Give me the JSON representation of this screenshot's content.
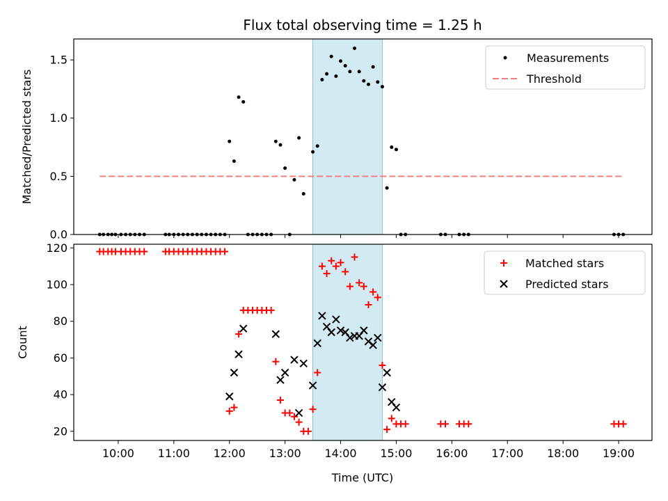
{
  "chart_data": [
    {
      "type": "scatter",
      "title": "Flux total observing time = 1.25 h",
      "xlabel": "",
      "ylabel": "Matched/Predicted stars",
      "xlim": [
        "09:12",
        "19:36"
      ],
      "ylim": [
        0,
        1.68
      ],
      "yticks": [
        "0.0",
        "0.5",
        "1.0",
        "1.5"
      ],
      "grid": false,
      "legend": "top-right",
      "shaded_span": {
        "start": "13:30",
        "end": "14:45",
        "color": "#add8e6"
      },
      "series": [
        {
          "name": "Measurements",
          "marker": "dot",
          "color": "#000000",
          "points": [
            [
              "09:40",
              0
            ],
            [
              "09:44",
              0
            ],
            [
              "09:49",
              0
            ],
            [
              "09:53",
              0
            ],
            [
              "09:57",
              0
            ],
            [
              "10:03",
              0
            ],
            [
              "10:08",
              0
            ],
            [
              "10:13",
              0
            ],
            [
              "10:18",
              0
            ],
            [
              "10:23",
              0
            ],
            [
              "10:28",
              0
            ],
            [
              "10:51",
              0
            ],
            [
              "10:55",
              0
            ],
            [
              "11:00",
              0
            ],
            [
              "11:05",
              0
            ],
            [
              "11:10",
              0
            ],
            [
              "11:15",
              0
            ],
            [
              "11:20",
              0
            ],
            [
              "11:25",
              0
            ],
            [
              "11:30",
              0
            ],
            [
              "11:35",
              0
            ],
            [
              "11:40",
              0
            ],
            [
              "11:45",
              0
            ],
            [
              "11:50",
              0
            ],
            [
              "11:55",
              0
            ],
            [
              "12:00",
              0.8
            ],
            [
              "12:05",
              0.63
            ],
            [
              "12:10",
              1.18
            ],
            [
              "12:15",
              1.14
            ],
            [
              "12:20",
              0
            ],
            [
              "12:25",
              0
            ],
            [
              "12:30",
              0
            ],
            [
              "12:35",
              0
            ],
            [
              "12:40",
              0
            ],
            [
              "12:45",
              0
            ],
            [
              "12:50",
              0.8
            ],
            [
              "12:55",
              0.77
            ],
            [
              "13:00",
              0.57
            ],
            [
              "13:05",
              0
            ],
            [
              "13:10",
              0.47
            ],
            [
              "13:15",
              0.83
            ],
            [
              "13:20",
              0.35
            ],
            [
              "13:30",
              0.71
            ],
            [
              "13:35",
              0.76
            ],
            [
              "13:40",
              1.33
            ],
            [
              "13:45",
              1.38
            ],
            [
              "13:50",
              1.53
            ],
            [
              "13:55",
              1.36
            ],
            [
              "14:00",
              1.49
            ],
            [
              "14:05",
              1.45
            ],
            [
              "14:10",
              1.4
            ],
            [
              "14:15",
              1.6
            ],
            [
              "14:20",
              1.4
            ],
            [
              "14:25",
              1.32
            ],
            [
              "14:30",
              1.29
            ],
            [
              "14:35",
              1.44
            ],
            [
              "14:40",
              1.31
            ],
            [
              "14:45",
              1.27
            ],
            [
              "14:50",
              0.4
            ],
            [
              "14:55",
              0.75
            ],
            [
              "15:00",
              0.73
            ],
            [
              "15:05",
              0
            ],
            [
              "15:10",
              0
            ],
            [
              "15:48",
              0
            ],
            [
              "15:53",
              0
            ],
            [
              "16:08",
              0
            ],
            [
              "16:13",
              0
            ],
            [
              "16:18",
              0
            ],
            [
              "18:55",
              0
            ],
            [
              "19:00",
              0
            ],
            [
              "19:05",
              0
            ]
          ]
        },
        {
          "name": "Threshold",
          "marker": "dashed-line",
          "color": "#f08080",
          "points": [
            [
              "09:40",
              0.5
            ],
            [
              "19:05",
              0.5
            ]
          ]
        }
      ]
    },
    {
      "type": "scatter",
      "title": "",
      "xlabel": "Time (UTC)",
      "ylabel": "Count",
      "xlim": [
        "09:12",
        "19:36"
      ],
      "ylim": [
        15,
        122
      ],
      "xticks": [
        "10:00",
        "11:00",
        "12:00",
        "13:00",
        "14:00",
        "15:00",
        "16:00",
        "17:00",
        "18:00",
        "19:00"
      ],
      "yticks": [
        "20",
        "40",
        "60",
        "80",
        "100",
        "120"
      ],
      "grid": false,
      "legend": "top-right",
      "shaded_span": {
        "start": "13:30",
        "end": "14:45",
        "color": "#add8e6"
      },
      "series": [
        {
          "name": "Matched stars",
          "marker": "plus",
          "color": "#ff0000",
          "points": [
            [
              "09:40",
              118
            ],
            [
              "09:44",
              118
            ],
            [
              "09:49",
              118
            ],
            [
              "09:53",
              118
            ],
            [
              "09:57",
              118
            ],
            [
              "10:03",
              118
            ],
            [
              "10:08",
              118
            ],
            [
              "10:13",
              118
            ],
            [
              "10:18",
              118
            ],
            [
              "10:23",
              118
            ],
            [
              "10:28",
              118
            ],
            [
              "10:51",
              118
            ],
            [
              "10:55",
              118
            ],
            [
              "11:00",
              118
            ],
            [
              "11:05",
              118
            ],
            [
              "11:10",
              118
            ],
            [
              "11:15",
              118
            ],
            [
              "11:20",
              118
            ],
            [
              "11:25",
              118
            ],
            [
              "11:30",
              118
            ],
            [
              "11:35",
              118
            ],
            [
              "11:40",
              118
            ],
            [
              "11:45",
              118
            ],
            [
              "11:50",
              118
            ],
            [
              "11:55",
              118
            ],
            [
              "12:00",
              31
            ],
            [
              "12:05",
              33
            ],
            [
              "12:10",
              73
            ],
            [
              "12:15",
              86
            ],
            [
              "12:20",
              86
            ],
            [
              "12:25",
              86
            ],
            [
              "12:30",
              86
            ],
            [
              "12:35",
              86
            ],
            [
              "12:40",
              86
            ],
            [
              "12:45",
              86
            ],
            [
              "12:50",
              58
            ],
            [
              "12:55",
              37
            ],
            [
              "13:00",
              30
            ],
            [
              "13:05",
              30
            ],
            [
              "13:10",
              28
            ],
            [
              "13:15",
              25
            ],
            [
              "13:20",
              20
            ],
            [
              "13:25",
              20
            ],
            [
              "13:30",
              32
            ],
            [
              "13:35",
              52
            ],
            [
              "13:40",
              110
            ],
            [
              "13:45",
              106
            ],
            [
              "13:50",
              113
            ],
            [
              "13:55",
              110
            ],
            [
              "14:00",
              112
            ],
            [
              "14:05",
              107
            ],
            [
              "14:10",
              99
            ],
            [
              "14:15",
              115
            ],
            [
              "14:20",
              101
            ],
            [
              "14:25",
              99
            ],
            [
              "14:30",
              89
            ],
            [
              "14:35",
              96
            ],
            [
              "14:40",
              93
            ],
            [
              "14:45",
              56
            ],
            [
              "14:50",
              21
            ],
            [
              "14:55",
              27
            ],
            [
              "15:00",
              24
            ],
            [
              "15:05",
              24
            ],
            [
              "15:10",
              24
            ],
            [
              "15:48",
              24
            ],
            [
              "15:53",
              24
            ],
            [
              "16:08",
              24
            ],
            [
              "16:13",
              24
            ],
            [
              "16:18",
              24
            ],
            [
              "18:55",
              24
            ],
            [
              "19:00",
              24
            ],
            [
              "19:05",
              24
            ]
          ]
        },
        {
          "name": "Predicted stars",
          "marker": "x",
          "color": "#000000",
          "points": [
            [
              "12:00",
              39
            ],
            [
              "12:05",
              52
            ],
            [
              "12:10",
              62
            ],
            [
              "12:15",
              76
            ],
            [
              "12:50",
              73
            ],
            [
              "12:55",
              48
            ],
            [
              "13:00",
              52
            ],
            [
              "13:10",
              59
            ],
            [
              "13:15",
              30
            ],
            [
              "13:20",
              57
            ],
            [
              "13:30",
              45
            ],
            [
              "13:35",
              68
            ],
            [
              "13:40",
              83
            ],
            [
              "13:45",
              77
            ],
            [
              "13:50",
              74
            ],
            [
              "13:55",
              81
            ],
            [
              "14:00",
              75
            ],
            [
              "14:05",
              74
            ],
            [
              "14:10",
              71
            ],
            [
              "14:15",
              72
            ],
            [
              "14:20",
              72
            ],
            [
              "14:25",
              75
            ],
            [
              "14:30",
              69
            ],
            [
              "14:35",
              67
            ],
            [
              "14:40",
              71
            ],
            [
              "14:45",
              44
            ],
            [
              "14:50",
              52
            ],
            [
              "14:55",
              36
            ],
            [
              "15:00",
              33
            ]
          ]
        }
      ]
    }
  ]
}
